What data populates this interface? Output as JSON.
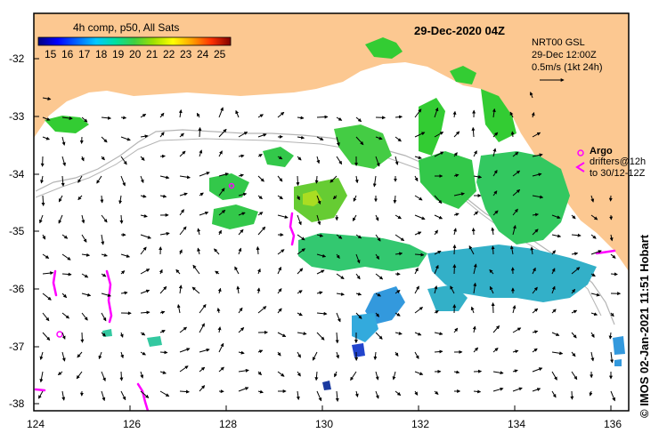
{
  "map": {
    "legend_title": "4h comp, p50, All Sats",
    "legend_ticks": [
      "15",
      "16",
      "17",
      "18",
      "19",
      "20",
      "21",
      "22",
      "23",
      "24",
      "25"
    ],
    "date_label": "29-Dec-2020 04Z",
    "current_info": {
      "line1": "NRT00 GSL",
      "line2": "29-Dec 12:00Z",
      "line3": "0.5m/s (1kt 24h)"
    },
    "argo_label": "Argo",
    "drifter_label_1": "drifters@12h",
    "drifter_label_2": "to 30/12-12Z",
    "side_label": "© IMOS 02-Jan-2021 11:51 Hobart",
    "colors": {
      "land": "#fcc891",
      "ocean": "#ffffff",
      "frame": "#000000",
      "argo": "#ff00ff",
      "drifter": "#ff00ff",
      "isobath": "#b4b4b4"
    },
    "y_ticks": [
      "-32",
      "-33",
      "-34",
      "-35",
      "-36",
      "-37",
      "-38"
    ],
    "x_ticks": [
      "124",
      "126",
      "128",
      "130",
      "132",
      "134",
      "136"
    ]
  }
}
